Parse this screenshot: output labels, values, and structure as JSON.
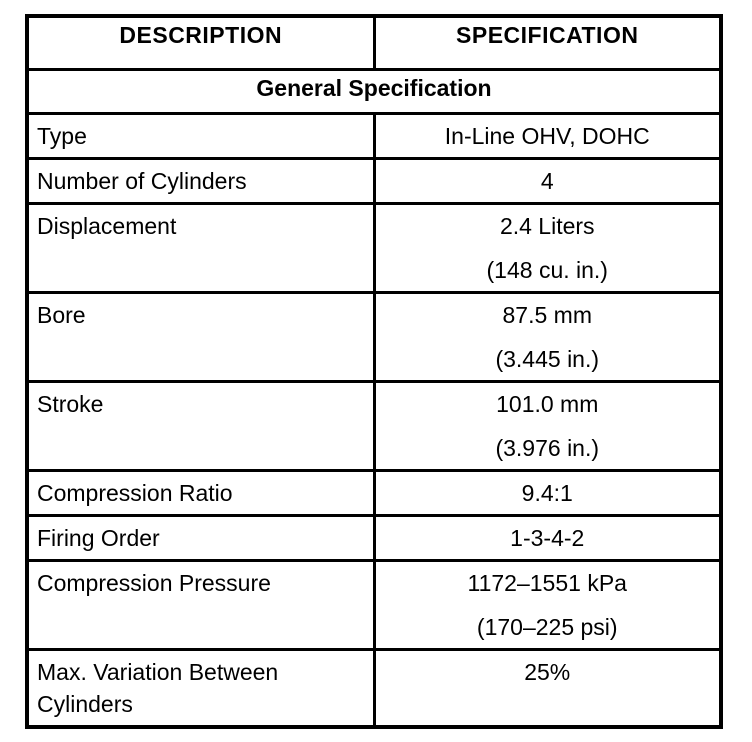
{
  "page": {
    "background_color": "#ffffff",
    "text_color": "#000000",
    "border_color": "#000000"
  },
  "table": {
    "columns": [
      "DESCRIPTION",
      "SPECIFICATION"
    ],
    "section_title": "General Specification",
    "rows": [
      {
        "description": "Type",
        "spec_lines": [
          "In-Line OHV, DOHC"
        ]
      },
      {
        "description": "Number of Cylinders",
        "spec_lines": [
          "4"
        ]
      },
      {
        "description": "Displacement",
        "spec_lines": [
          "2.4 Liters",
          "(148 cu. in.)"
        ]
      },
      {
        "description": "Bore",
        "spec_lines": [
          "87.5 mm",
          "(3.445 in.)"
        ]
      },
      {
        "description": "Stroke",
        "spec_lines": [
          "101.0 mm",
          "(3.976 in.)"
        ]
      },
      {
        "description": "Compression Ratio",
        "spec_lines": [
          "9.4:1"
        ]
      },
      {
        "description": "Firing Order",
        "spec_lines": [
          "1-3-4-2"
        ]
      },
      {
        "description": "Compression Pressure",
        "spec_lines": [
          "1172–1551 kPa",
          "(170–225 psi)"
        ]
      },
      {
        "description": "Max. Variation Between Cylinders",
        "spec_lines": [
          "25%"
        ]
      }
    ]
  }
}
